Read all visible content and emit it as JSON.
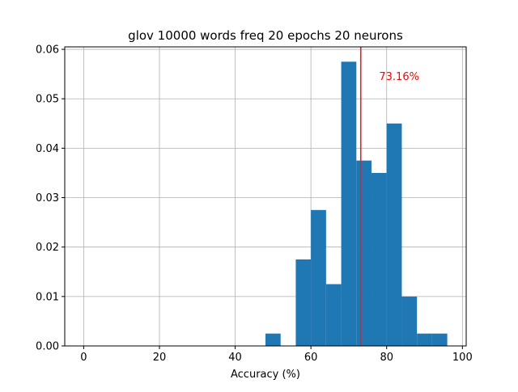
{
  "chart_data": {
    "type": "bar",
    "title": "glov 10000 words freq 20 epochs 20 neurons",
    "xlabel": "Accuracy (%)",
    "ylabel": "",
    "xlim": [
      -5,
      101
    ],
    "ylim": [
      0,
      0.0605
    ],
    "xticks": [
      0,
      20,
      40,
      60,
      80,
      100
    ],
    "xtick_labels": [
      "0",
      "20",
      "40",
      "60",
      "80",
      "100"
    ],
    "yticks": [
      0,
      0.01,
      0.02,
      0.03,
      0.04,
      0.05,
      0.06
    ],
    "ytick_labels": [
      "0.00",
      "0.01",
      "0.02",
      "0.03",
      "0.04",
      "0.05",
      "0.06"
    ],
    "grid": true,
    "bar_color": "#1f77b4",
    "bins": [
      {
        "x0": 48,
        "x1": 52,
        "value": 0.0025
      },
      {
        "x0": 56,
        "x1": 60,
        "value": 0.0175
      },
      {
        "x0": 60,
        "x1": 64,
        "value": 0.0275
      },
      {
        "x0": 64,
        "x1": 68,
        "value": 0.0125
      },
      {
        "x0": 68,
        "x1": 72,
        "value": 0.0575
      },
      {
        "x0": 72,
        "x1": 76,
        "value": 0.0375
      },
      {
        "x0": 76,
        "x1": 80,
        "value": 0.035
      },
      {
        "x0": 80,
        "x1": 84,
        "value": 0.045
      },
      {
        "x0": 84,
        "x1": 88,
        "value": 0.01
      },
      {
        "x0": 88,
        "x1": 92,
        "value": 0.0025
      },
      {
        "x0": 92,
        "x1": 96,
        "value": 0.0025
      }
    ],
    "vline": {
      "x": 73.16,
      "color": "#d62728"
    },
    "annotation": {
      "text": "73.16%",
      "x": 78,
      "y": 0.0545,
      "color": "#ff0000"
    }
  }
}
